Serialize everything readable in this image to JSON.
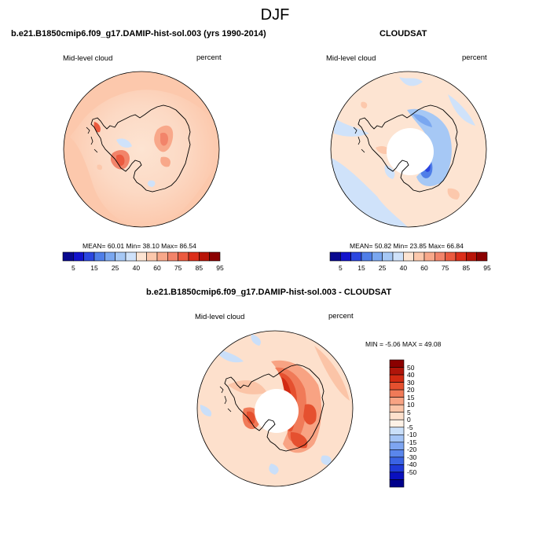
{
  "title": "DJF",
  "colors": {
    "land_outline": "#000000",
    "missing": "#ffffff",
    "abs_scale": [
      "#08088f",
      "#1212cc",
      "#2b46e0",
      "#4f7ee8",
      "#7aa7f0",
      "#a6c8f5",
      "#cfe2fa",
      "#fde4d2",
      "#fcc8ac",
      "#f8a88a",
      "#f2846a",
      "#eb5a3f",
      "#dc2e1a",
      "#b81408",
      "#8b0000"
    ],
    "diff_scale": [
      "#00008b",
      "#0a10bf",
      "#1f3ad8",
      "#3a63e4",
      "#5a86ec",
      "#7ea5f1",
      "#a4c4f6",
      "#cadff9",
      "#fdf1e6",
      "#fde0cc",
      "#fbc4a7",
      "#f8a383",
      "#f07a58",
      "#e5502f",
      "#d22a12",
      "#b0150a",
      "#8b0000"
    ]
  },
  "panels": [
    {
      "title": "b.e21.B1850cmip6.f09_g17.DAMIP-hist-sol.003 (yrs 1990-2014)",
      "left_label": "Mid-level cloud",
      "right_label": "percent",
      "stats": "MEAN=  60.01  Min=  38.10  Max=  86.54",
      "colorbar_labels": [
        "5",
        "15",
        "25",
        "40",
        "60",
        "75",
        "85",
        "95"
      ]
    },
    {
      "title": "CLOUDSAT",
      "left_label": "Mid-level cloud",
      "right_label": "percent",
      "stats": "MEAN=  50.82  Min=  23.85  Max=  66.84",
      "colorbar_labels": [
        "5",
        "15",
        "25",
        "40",
        "60",
        "75",
        "85",
        "95"
      ]
    },
    {
      "title": "b.e21.B1850cmip6.f09_g17.DAMIP-hist-sol.003 - CLOUDSAT",
      "left_label": "Mid-level cloud",
      "right_label": "percent",
      "stats": "MIN =  -5.06 MAX =  49.08",
      "colorbar_labels": [
        "50",
        "40",
        "30",
        "20",
        "15",
        "10",
        "5",
        "0",
        "-5",
        "-10",
        "-15",
        "-20",
        "-30",
        "-40",
        "-50"
      ]
    }
  ]
}
